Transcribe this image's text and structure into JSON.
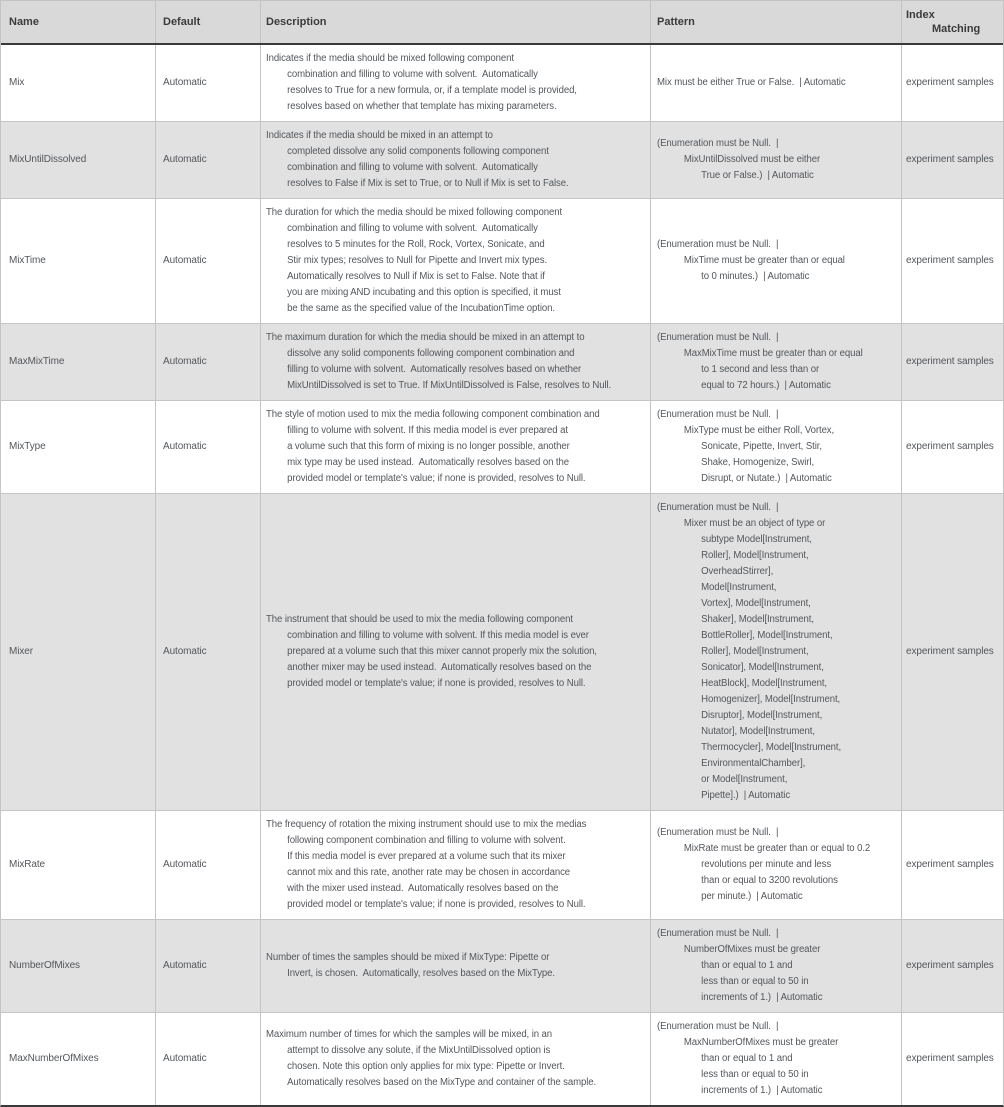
{
  "colors": {
    "header_bg": "#d9d9d9",
    "row_bg": "#ffffff",
    "row_alt_bg": "#e1e1e1",
    "border_dark": "#3a3a3a",
    "border_light": "#c4c4c4",
    "text": "#53575c",
    "header_text": "#3b3b3b"
  },
  "table": {
    "header": {
      "name": "Name",
      "default": "Default",
      "description": "Description",
      "pattern": "Pattern",
      "index_matching_lines": [
        "Index",
        "Matching"
      ]
    },
    "rows": [
      {
        "name": "Mix",
        "default": "Automatic",
        "description_lines": [
          "Indicates if the media should be mixed following component",
          "combination and filling to volume with solvent.  Automatically",
          "resolves to True for a new formula, or, if a template model is provided,",
          "resolves based on whether that template has mixing parameters."
        ],
        "pattern_lines": [
          "Mix must be either True or False.  | Automatic"
        ],
        "index_matching": "experiment samples"
      },
      {
        "name": "MixUntilDissolved",
        "default": "Automatic",
        "description_lines": [
          "Indicates if the media should be mixed in an attempt to",
          "completed dissolve any solid components following component",
          "combination and filling to volume with solvent.  Automatically",
          "resolves to False if Mix is set to True, or to Null if Mix is set to False."
        ],
        "pattern_lines": [
          "(Enumeration must be Null.  |",
          "MixUntilDissolved must be either",
          "True or False.)  | Automatic"
        ],
        "index_matching": "experiment samples"
      },
      {
        "name": "MixTime",
        "default": "Automatic",
        "description_lines": [
          "The duration for which the media should be mixed following component",
          "combination and filling to volume with solvent.  Automatically",
          "resolves to 5 minutes for the Roll, Rock, Vortex, Sonicate, and",
          "Stir mix types; resolves to Null for Pipette and Invert mix types.",
          "Automatically resolves to Null if Mix is set to False. Note that if",
          "you are mixing AND incubating and this option is specified, it must",
          "be the same as the specified value of the IncubationTime option."
        ],
        "pattern_lines": [
          "(Enumeration must be Null.  |",
          "MixTime must be greater than or equal",
          "to 0 minutes.)  | Automatic"
        ],
        "index_matching": "experiment samples"
      },
      {
        "name": "MaxMixTime",
        "default": "Automatic",
        "description_lines": [
          "The maximum duration for which the media should be mixed in an attempt to",
          "dissolve any solid components following component combination and",
          "filling to volume with solvent.  Automatically resolves based on whether",
          "MixUntilDissolved is set to True. If MixUntilDissolved is False, resolves to Null."
        ],
        "pattern_lines": [
          "(Enumeration must be Null.  |",
          "MaxMixTime must be greater than or equal",
          "to 1 second and less than or",
          "equal to 72 hours.)  | Automatic"
        ],
        "index_matching": "experiment samples"
      },
      {
        "name": "MixType",
        "default": "Automatic",
        "description_lines": [
          "The style of motion used to mix the media following component combination and",
          "filling to volume with solvent. If this media model is ever prepared at",
          "a volume such that this form of mixing is no longer possible, another",
          "mix type may be used instead.  Automatically resolves based on the",
          "provided model or template's value; if none is provided, resolves to Null."
        ],
        "pattern_lines": [
          "(Enumeration must be Null.  |",
          "MixType must be either Roll, Vortex,",
          "Sonicate, Pipette, Invert, Stir,",
          "Shake, Homogenize, Swirl,",
          "Disrupt, or Nutate.)  | Automatic"
        ],
        "index_matching": "experiment samples"
      },
      {
        "name": "Mixer",
        "default": "Automatic",
        "description_lines": [
          "The instrument that should be used to mix the media following component",
          "combination and filling to volume with solvent. If this media model is ever",
          "prepared at a volume such that this mixer cannot properly mix the solution,",
          "another mixer may be used instead.  Automatically resolves based on the",
          "provided model or template's value; if none is provided, resolves to Null."
        ],
        "pattern_lines": [
          "(Enumeration must be Null.  |",
          "Mixer must be an object of type or",
          "subtype Model[Instrument,",
          "Roller], Model[Instrument,",
          "OverheadStirrer],",
          "Model[Instrument,",
          "Vortex], Model[Instrument,",
          "Shaker], Model[Instrument,",
          "BottleRoller], Model[Instrument,",
          "Roller], Model[Instrument,",
          "Sonicator], Model[Instrument,",
          "HeatBlock], Model[Instrument,",
          "Homogenizer], Model[Instrument,",
          "Disruptor], Model[Instrument,",
          "Nutator], Model[Instrument,",
          "Thermocycler], Model[Instrument,",
          "EnvironmentalChamber],",
          "or Model[Instrument,",
          "Pipette].)  | Automatic"
        ],
        "index_matching": "experiment samples"
      },
      {
        "name": "MixRate",
        "default": "Automatic",
        "description_lines": [
          "The frequency of rotation the mixing instrument should use to mix the medias",
          "following component combination and filling to volume with solvent.",
          "If this media model is ever prepared at a volume such that its mixer",
          "cannot mix and this rate, another rate may be chosen in accordance",
          "with the mixer used instead.  Automatically resolves based on the",
          "provided model or template's value; if none is provided, resolves to Null."
        ],
        "pattern_lines": [
          "(Enumeration must be Null.  |",
          "MixRate must be greater than or equal to 0.2",
          "revolutions per minute and less",
          "than or equal to 3200 revolutions",
          "per minute.)  | Automatic"
        ],
        "index_matching": "experiment samples"
      },
      {
        "name": "NumberOfMixes",
        "default": "Automatic",
        "description_lines": [
          "Number of times the samples should be mixed if MixType: Pipette or",
          "Invert, is chosen.  Automatically, resolves based on the MixType."
        ],
        "pattern_lines": [
          "(Enumeration must be Null.  |",
          "NumberOfMixes must be greater",
          "than or equal to 1 and",
          "less than or equal to 50 in",
          "increments of 1.)  | Automatic"
        ],
        "index_matching": "experiment samples"
      },
      {
        "name": "MaxNumberOfMixes",
        "default": "Automatic",
        "description_lines": [
          "Maximum number of times for which the samples will be mixed, in an",
          "attempt to dissolve any solute, if the MixUntilDissolved option is",
          "chosen. Note this option only applies for mix type: Pipette or Invert.",
          "Automatically resolves based on the MixType and container of the sample."
        ],
        "pattern_lines": [
          "(Enumeration must be Null.  |",
          "MaxNumberOfMixes must be greater",
          "than or equal to 1 and",
          "less than or equal to 50 in",
          "increments of 1.)  | Automatic"
        ],
        "index_matching": "experiment samples"
      }
    ]
  }
}
